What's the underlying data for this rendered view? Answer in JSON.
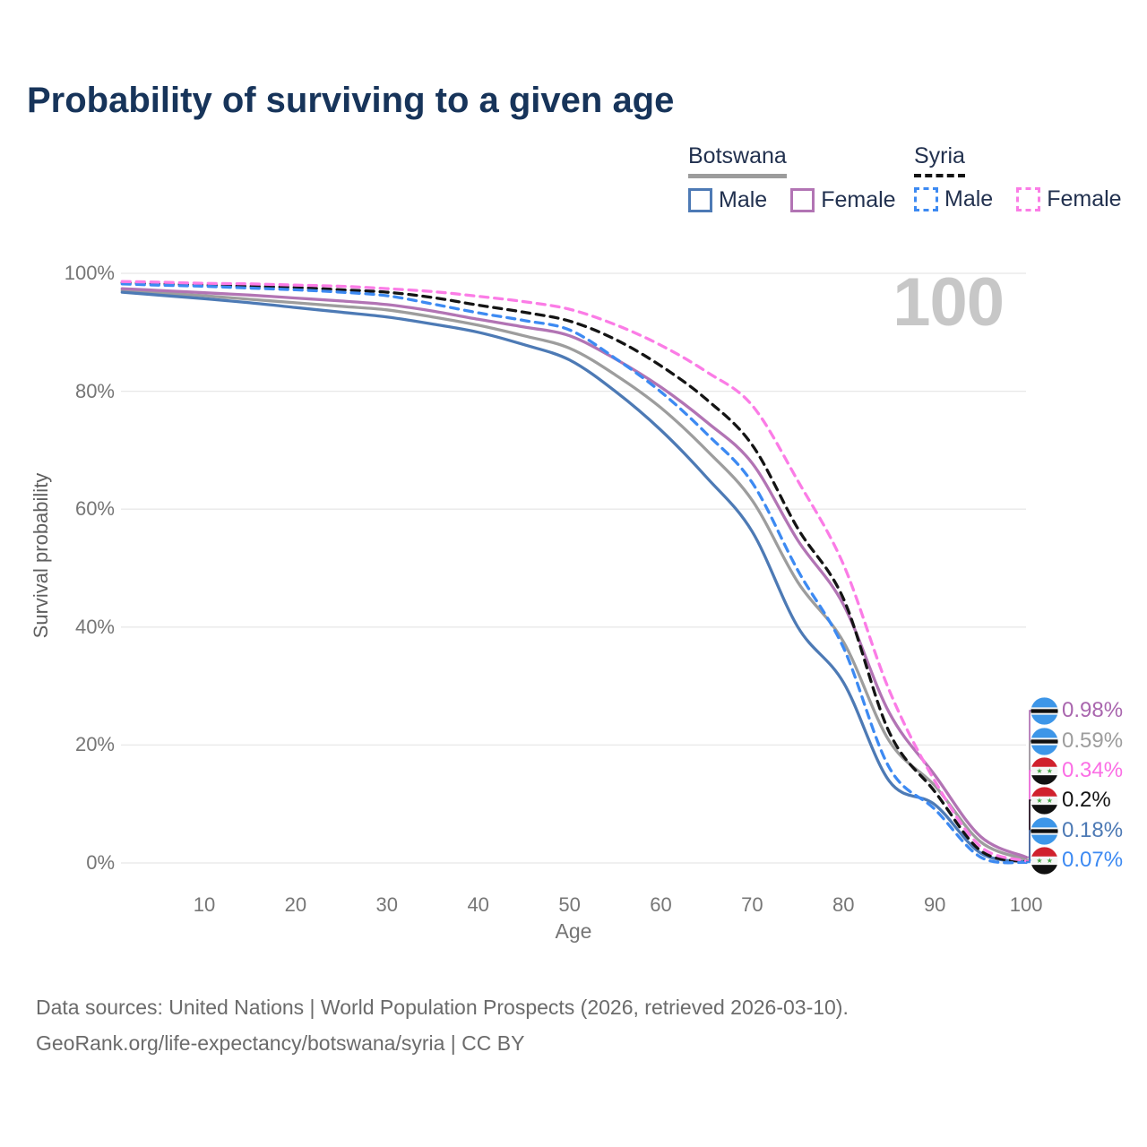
{
  "title": "Probability of surviving to a given age",
  "watermark": "100",
  "legend": {
    "groups": [
      {
        "label": "Botswana",
        "line_style": "solid",
        "underline_color": "#9c9c9c",
        "items": [
          {
            "label": "Male",
            "color": "#4d7ab5",
            "dashed": false
          },
          {
            "label": "Female",
            "color": "#b274b4",
            "dashed": false
          }
        ]
      },
      {
        "label": "Syria",
        "line_style": "dashed",
        "underline_color": "#141414",
        "items": [
          {
            "label": "Male",
            "color": "#3d8af2",
            "dashed": true
          },
          {
            "label": "Female",
            "color": "#fb7ce6",
            "dashed": true
          }
        ]
      }
    ]
  },
  "chart_data": {
    "type": "line",
    "title": "Probability of surviving to a given age",
    "xlabel": "Age",
    "ylabel": "Survival probability",
    "xlim": [
      0,
      100
    ],
    "ylim": [
      0,
      100
    ],
    "grid": "horizontal",
    "x_tick_labels": [
      "10",
      "20",
      "30",
      "40",
      "50",
      "60",
      "70",
      "80",
      "90",
      "100"
    ],
    "y_tick_labels": [
      "0%",
      "20%",
      "40%",
      "60%",
      "80%",
      "100%"
    ],
    "x": [
      1,
      5,
      10,
      15,
      20,
      25,
      30,
      35,
      40,
      45,
      50,
      55,
      60,
      65,
      70,
      75,
      80,
      85,
      90,
      95,
      100
    ],
    "series": [
      {
        "name": "Botswana",
        "key": "botswana_total",
        "color": "#9d9d9d",
        "dashed": false,
        "values": [
          97.1,
          96.7,
          96.2,
          95.6,
          95.0,
          94.4,
          93.8,
          92.6,
          91.2,
          89.4,
          87.3,
          82.8,
          77.2,
          70.0,
          61.5,
          47.6,
          37.5,
          20.7,
          13.1,
          3.6,
          0.59
        ]
      },
      {
        "name": "Botswana Female",
        "key": "botswana_female",
        "color": "#b274b4",
        "dashed": false,
        "values": [
          97.4,
          97.1,
          96.7,
          96.3,
          95.8,
          95.3,
          94.7,
          93.6,
          92.2,
          90.9,
          89.4,
          85.5,
          80.7,
          74.8,
          67.8,
          54.7,
          43.8,
          25.5,
          14.9,
          4.5,
          0.98
        ]
      },
      {
        "name": "Botswana Male",
        "key": "botswana_male",
        "color": "#4d7ab5",
        "dashed": false,
        "values": [
          96.8,
          96.3,
          95.7,
          95.0,
          94.2,
          93.4,
          92.6,
          91.4,
          90.0,
          87.9,
          85.3,
          80.0,
          73.4,
          65.4,
          56.2,
          40.0,
          30.6,
          13.9,
          9.9,
          1.7,
          0.18
        ]
      },
      {
        "name": "Syria",
        "key": "syria_total",
        "color": "#141414",
        "dashed": true,
        "values": [
          98.4,
          98.2,
          98.0,
          97.8,
          97.6,
          97.2,
          96.8,
          95.9,
          94.6,
          93.4,
          91.9,
          88.8,
          84.3,
          78.6,
          70.9,
          56.7,
          44.8,
          22.2,
          12.1,
          2.1,
          0.2
        ]
      },
      {
        "name": "Syria Male",
        "key": "syria_male",
        "color": "#3d8af2",
        "dashed": true,
        "values": [
          98.2,
          98.0,
          97.8,
          97.5,
          97.2,
          96.8,
          96.2,
          94.8,
          93.3,
          92.0,
          90.4,
          85.6,
          79.9,
          72.8,
          64.5,
          49.6,
          36.5,
          16.2,
          9.1,
          1.0,
          0.07
        ]
      },
      {
        "name": "Syria Female",
        "key": "syria_female",
        "color": "#fb7ce6",
        "dashed": true,
        "values": [
          98.6,
          98.5,
          98.3,
          98.2,
          98.0,
          97.8,
          97.4,
          96.9,
          96.1,
          95.2,
          93.9,
          91.3,
          87.8,
          83.3,
          77.6,
          64.8,
          50.6,
          29.3,
          13.9,
          2.8,
          0.34
        ]
      }
    ]
  },
  "end_labels": [
    {
      "value": "0.98%",
      "color": "#a966ae",
      "flag": "botswana",
      "series_key": "botswana_female"
    },
    {
      "value": "0.59%",
      "color": "#9d9d9d",
      "flag": "botswana",
      "series_key": "botswana_total"
    },
    {
      "value": "0.34%",
      "color": "#fb6ee5",
      "flag": "syria",
      "series_key": "syria_female"
    },
    {
      "value": "0.2%",
      "color": "#141414",
      "flag": "syria",
      "series_key": "syria_total"
    },
    {
      "value": "0.18%",
      "color": "#4d7ab5",
      "flag": "botswana",
      "series_key": "botswana_male"
    },
    {
      "value": "0.07%",
      "color": "#3d8af2",
      "flag": "syria",
      "series_key": "syria_male"
    }
  ],
  "footer": {
    "line1": "Data sources: United Nations | World Population Prospects (2026, retrieved 2026-03-10).",
    "line2": "GeoRank.org/life-expectancy/botswana/syria | CC BY"
  }
}
